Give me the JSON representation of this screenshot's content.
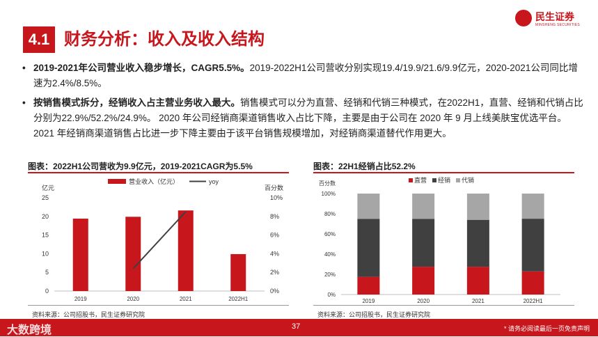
{
  "header": {
    "section_number": "4.1",
    "title": "财务分析：收入及收入结构",
    "logo_name": "民生证券",
    "logo_sub": "MINSHENG SECURITIES"
  },
  "bullets": [
    {
      "bold": "2019-2021年公司营业收入稳步增长，CAGR5.5%。",
      "text": "2019-2022H1公司营收分别实现19.4/19.9/21.6/9.9亿元，2020-2021公司同比增速为2.4%/8.5%。"
    },
    {
      "bold": "按销售模式拆分，经销收入占主营业务收入最大。",
      "text": "销售模式可以分为直营、经销和代销三种模式，在2022H1，直营、经销和代销占比分别为22.9%/52.2%/24.9%。 2020 年公司经销商渠道销售收入占比下降，主要是由于公司在 2020 年 9 月上线美肤宝优选平台。2021 年经销商渠道销售占比进一步下降主要由于该平台销售规模增加，对经销商渠道替代作用更大。"
    }
  ],
  "charts": {
    "left": {
      "title": "图表：2022H1公司营收为9.9亿元，2019-2021CAGR为5.5%",
      "source": "资料来源：公司招股书，民生证券研究院",
      "left_unit": "亿元",
      "right_unit": "百分数",
      "legend_bar": "营业收入（亿元）",
      "legend_line": "yoy",
      "y_ticks": [
        "0",
        "5",
        "10",
        "15",
        "20",
        "25"
      ],
      "y2_ticks": [
        "0%",
        "2%",
        "4%",
        "6%",
        "8%",
        "10%"
      ]
    },
    "right": {
      "title": "图表：22H1经销占比52.2%",
      "source": "资料来源：公司招股书，民生证券研究院",
      "unit": "百分数",
      "legend": [
        "直营",
        "经销",
        "代销"
      ],
      "y_ticks": [
        "0%",
        "20%",
        "40%",
        "60%",
        "80%",
        "100%"
      ]
    }
  },
  "chart_data": [
    {
      "type": "bar",
      "title": "图表：2022H1公司营收为9.9亿元，2019-2021CAGR为5.5%",
      "categories": [
        "2019",
        "2020",
        "2021",
        "2022H1"
      ],
      "series": [
        {
          "name": "营业收入（亿元）",
          "type": "bar",
          "axis": "left",
          "values": [
            19.4,
            19.9,
            21.6,
            9.9
          ]
        },
        {
          "name": "yoy",
          "type": "line",
          "axis": "right",
          "values": [
            null,
            2.4,
            8.5,
            null
          ]
        }
      ],
      "ylim": [
        0,
        25
      ],
      "y2lim": [
        0,
        10
      ],
      "colors": {
        "bar": "#c8161d",
        "line": "#404040"
      }
    },
    {
      "type": "bar",
      "stacked": true,
      "title": "图表：22H1经销占比52.2%",
      "categories": [
        "2019",
        "2020",
        "2021",
        "2022H1"
      ],
      "series": [
        {
          "name": "直营",
          "values": [
            17.5,
            27.5,
            27.5,
            22.9
          ]
        },
        {
          "name": "经销",
          "values": [
            57.5,
            47.5,
            46.5,
            52.2
          ]
        },
        {
          "name": "代销",
          "values": [
            25.0,
            25.0,
            26.0,
            24.9
          ]
        }
      ],
      "ylim": [
        0,
        100
      ],
      "colors": {
        "直营": "#c8161d",
        "经销": "#404040",
        "代销": "#a6a6a6"
      }
    }
  ],
  "footer": {
    "page": "37",
    "note": "* 请务必阅读最后一页免责声明",
    "watermark": "大数跨境"
  }
}
